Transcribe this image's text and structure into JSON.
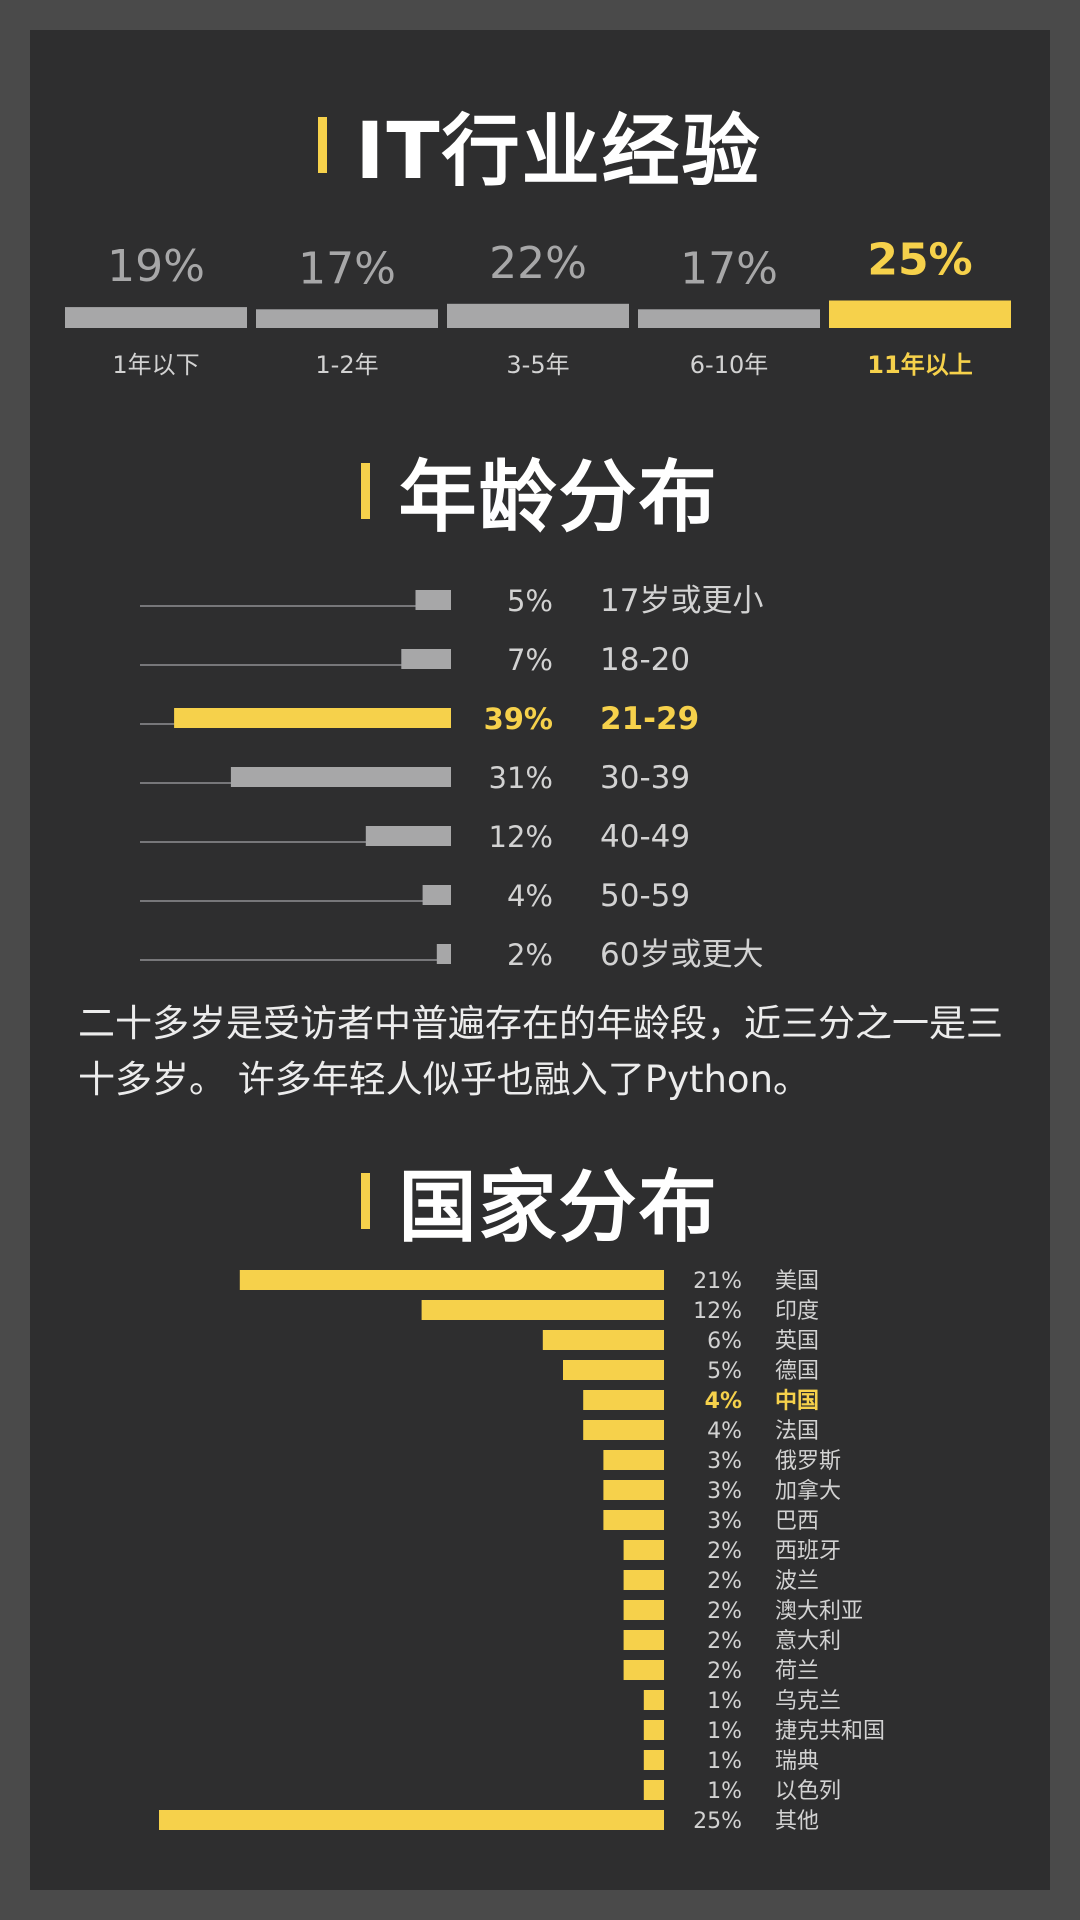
{
  "sections": {
    "experience_title": "IT行业经验",
    "age_title": "年龄分布",
    "country_title": "国家分布"
  },
  "age_note": "二十多岁是受访者中普遍存在的年龄段，近三分之一是三十多岁。 许多年轻人似乎也融入了Python。",
  "colors": {
    "accent": "#f6d14b",
    "bar_gray": "#a7a7a8",
    "panel": "#2e2e2f",
    "outer": "#4a4a4a",
    "text": "#d2d2d2"
  },
  "chart_data": [
    {
      "type": "bar",
      "title": "IT行业经验",
      "categories": [
        "1年以下",
        "1-2年",
        "3-5年",
        "6-10年",
        "11年以上"
      ],
      "values": [
        19,
        17,
        22,
        17,
        25
      ],
      "value_labels": [
        "19%",
        "17%",
        "22%",
        "17%",
        "25%"
      ],
      "highlight_index": 4
    },
    {
      "type": "bar",
      "title": "年龄分布",
      "categories": [
        "17岁或更小",
        "18-20",
        "21-29",
        "30-39",
        "40-49",
        "50-59",
        "60岁或更大"
      ],
      "values": [
        5,
        7,
        39,
        31,
        12,
        4,
        2
      ],
      "value_labels": [
        "5%",
        "7%",
        "39%",
        "31%",
        "12%",
        "4%",
        "2%"
      ],
      "highlight_index": 2
    },
    {
      "type": "bar",
      "title": "国家分布",
      "categories": [
        "美国",
        "印度",
        "英国",
        "德国",
        "中国",
        "法国",
        "俄罗斯",
        "加拿大",
        "巴西",
        "西班牙",
        "波兰",
        "澳大利亚",
        "意大利",
        "荷兰",
        "乌克兰",
        "捷克共和国",
        "瑞典",
        "以色列",
        "其他"
      ],
      "values": [
        21,
        12,
        6,
        5,
        4,
        4,
        3,
        3,
        3,
        2,
        2,
        2,
        2,
        2,
        1,
        1,
        1,
        1,
        25
      ],
      "value_labels": [
        "21%",
        "12%",
        "6%",
        "5%",
        "4%",
        "4%",
        "3%",
        "3%",
        "3%",
        "2%",
        "2%",
        "2%",
        "2%",
        "2%",
        "1%",
        "1%",
        "1%",
        "1%",
        "25%"
      ],
      "highlight_index": 4
    }
  ]
}
